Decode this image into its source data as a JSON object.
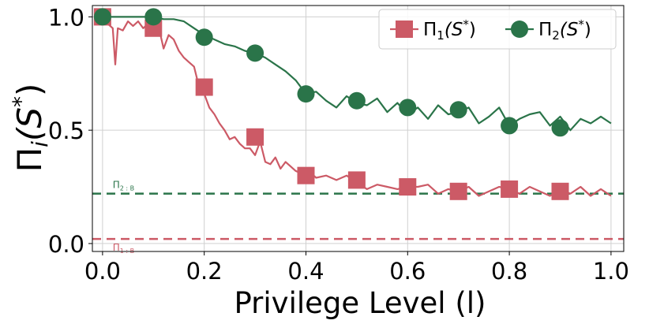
{
  "chart_data": {
    "type": "line",
    "xlabel": "Privilege Level (l)",
    "ylabel": "Π_i(S*)",
    "xlim": [
      -0.02,
      1.025
    ],
    "ylim": [
      -0.035,
      1.05
    ],
    "x_ticks": [
      0.0,
      0.2,
      0.4,
      0.6,
      0.8,
      1.0
    ],
    "x_tick_labels": [
      "0.0",
      "0.2",
      "0.4",
      "0.6",
      "0.8",
      "1.0"
    ],
    "y_ticks": [
      0.0,
      0.5,
      1.0
    ],
    "y_tick_labels": [
      "0.0",
      "0.5",
      "1.0"
    ],
    "grid": true,
    "legend_position": "top-right",
    "series": [
      {
        "name": "Π1(S*)",
        "label_main": "Π",
        "label_sub": "1",
        "label_arg": "(S",
        "label_sup": "*",
        "label_close": ")",
        "color": "#cc5a66",
        "marker": "square",
        "x": [
          0,
          0.01,
          0.02,
          0.025,
          0.03,
          0.04,
          0.05,
          0.06,
          0.07,
          0.08,
          0.09,
          0.1,
          0.11,
          0.12,
          0.13,
          0.14,
          0.15,
          0.16,
          0.17,
          0.18,
          0.19,
          0.2,
          0.21,
          0.22,
          0.23,
          0.24,
          0.25,
          0.26,
          0.27,
          0.28,
          0.29,
          0.3,
          0.31,
          0.32,
          0.33,
          0.34,
          0.35,
          0.36,
          0.37,
          0.38,
          0.39,
          0.4,
          0.42,
          0.44,
          0.46,
          0.48,
          0.5,
          0.52,
          0.54,
          0.56,
          0.58,
          0.6,
          0.62,
          0.64,
          0.66,
          0.68,
          0.7,
          0.72,
          0.74,
          0.76,
          0.78,
          0.8,
          0.82,
          0.84,
          0.86,
          0.88,
          0.9,
          0.92,
          0.94,
          0.96,
          0.98,
          1.0
        ],
        "y": [
          1.0,
          0.97,
          0.95,
          0.79,
          0.95,
          0.94,
          0.98,
          0.96,
          0.98,
          0.95,
          0.97,
          0.95,
          0.96,
          0.86,
          0.92,
          0.9,
          0.85,
          0.82,
          0.8,
          0.78,
          0.69,
          0.66,
          0.6,
          0.57,
          0.53,
          0.5,
          0.46,
          0.47,
          0.44,
          0.42,
          0.42,
          0.39,
          0.45,
          0.36,
          0.35,
          0.38,
          0.33,
          0.36,
          0.34,
          0.32,
          0.31,
          0.33,
          0.29,
          0.3,
          0.28,
          0.3,
          0.27,
          0.24,
          0.26,
          0.25,
          0.24,
          0.25,
          0.25,
          0.26,
          0.22,
          0.24,
          0.23,
          0.25,
          0.21,
          0.23,
          0.25,
          0.24,
          0.22,
          0.25,
          0.23,
          0.21,
          0.24,
          0.22,
          0.25,
          0.21,
          0.24,
          0.21
        ],
        "marker_x": [
          0.0,
          0.1,
          0.2,
          0.3,
          0.4,
          0.5,
          0.6,
          0.7,
          0.8,
          0.9
        ],
        "marker_y": [
          1.0,
          0.95,
          0.69,
          0.47,
          0.3,
          0.28,
          0.25,
          0.23,
          0.24,
          0.23
        ]
      },
      {
        "name": "Π2(S*)",
        "label_main": "Π",
        "label_sub": "2",
        "label_arg": "(S",
        "label_sup": "*",
        "label_close": ")",
        "color": "#2a7449",
        "marker": "circle",
        "x": [
          0,
          0.02,
          0.04,
          0.06,
          0.08,
          0.1,
          0.12,
          0.14,
          0.16,
          0.18,
          0.2,
          0.22,
          0.24,
          0.26,
          0.28,
          0.3,
          0.32,
          0.34,
          0.36,
          0.38,
          0.4,
          0.42,
          0.44,
          0.46,
          0.48,
          0.5,
          0.52,
          0.54,
          0.56,
          0.58,
          0.6,
          0.62,
          0.64,
          0.66,
          0.68,
          0.7,
          0.72,
          0.74,
          0.76,
          0.78,
          0.8,
          0.82,
          0.84,
          0.86,
          0.88,
          0.9,
          0.92,
          0.94,
          0.96,
          0.98,
          1.0
        ],
        "y": [
          1.0,
          1.0,
          1.0,
          1.0,
          1.0,
          1.0,
          0.99,
          0.99,
          0.98,
          0.95,
          0.92,
          0.9,
          0.88,
          0.87,
          0.85,
          0.84,
          0.82,
          0.79,
          0.76,
          0.72,
          0.66,
          0.67,
          0.63,
          0.6,
          0.65,
          0.62,
          0.61,
          0.64,
          0.58,
          0.62,
          0.57,
          0.6,
          0.55,
          0.61,
          0.57,
          0.58,
          0.6,
          0.53,
          0.56,
          0.6,
          0.52,
          0.55,
          0.57,
          0.58,
          0.52,
          0.56,
          0.5,
          0.55,
          0.53,
          0.56,
          0.53
        ],
        "marker_x": [
          0.0,
          0.1,
          0.2,
          0.3,
          0.4,
          0.5,
          0.6,
          0.7,
          0.8,
          0.9
        ],
        "marker_y": [
          1.0,
          1.0,
          0.91,
          0.84,
          0.66,
          0.63,
          0.6,
          0.59,
          0.52,
          0.51
        ]
      }
    ],
    "reference_lines": [
      {
        "name": "Π2:B",
        "label_main": "Π",
        "label_sub": "2 : B",
        "y": 0.22,
        "color": "#2a7449",
        "style": "dashed"
      },
      {
        "name": "Π1:B",
        "label_main": "Π",
        "label_sub": "1 : B",
        "y": 0.02,
        "color": "#cc5a66",
        "style": "dashed"
      }
    ]
  }
}
